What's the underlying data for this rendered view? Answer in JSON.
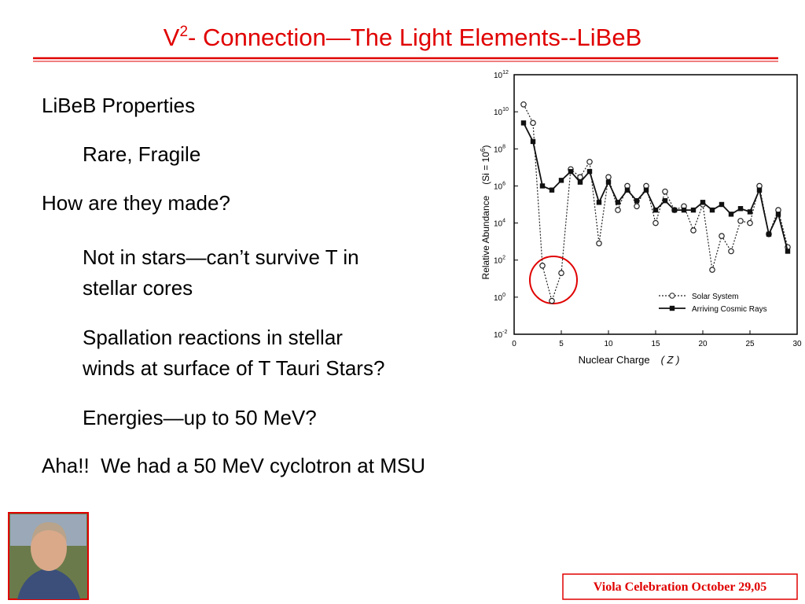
{
  "header": {
    "title": {
      "pre": "V",
      "sup": "2",
      "post": "- Connection—The Light Elements--LiBeB"
    }
  },
  "body": {
    "items": [
      {
        "level": 1,
        "text": "LiBeB Properties"
      },
      {
        "level": 2,
        "text": "Rare, Fragile"
      },
      {
        "level": 1,
        "text": "How are they made?"
      },
      {
        "level": 2,
        "text": "Not in stars—can’t survive T in"
      },
      {
        "level": 2,
        "text": "stellar cores"
      },
      {
        "level": 2,
        "text": "Spallation reactions in stellar"
      },
      {
        "level": 2,
        "text": "winds at surface of T Tauri Stars?"
      },
      {
        "level": 2,
        "text": "Energies—up to 50 MeV?"
      },
      {
        "level": 1,
        "text": "Aha!!  We had a 50 MeV cyclotron at MSU"
      }
    ]
  },
  "chart_data": {
    "type": "line",
    "xlabel": "Nuclear Charge",
    "xlabel_symbol": "( Z )",
    "ylabel": "Relative Abundance",
    "ylabel_unit": {
      "pre": "(Si = 10",
      "sup": "6",
      "post": ")"
    },
    "log_y": true,
    "xlim": [
      0,
      30
    ],
    "xticks": [
      0,
      5,
      10,
      15,
      20,
      25,
      30
    ],
    "ylim": [
      0.01,
      1000000000000.0
    ],
    "yticks": [
      {
        "value": 0.01,
        "label": "10",
        "sup": "-2"
      },
      {
        "value": 1,
        "label": "10",
        "sup": "0"
      },
      {
        "value": 100,
        "label": "10",
        "sup": "2"
      },
      {
        "value": 10000,
        "label": "10",
        "sup": "4"
      },
      {
        "value": 1000000,
        "label": "10",
        "sup": "6"
      },
      {
        "value": 100000000,
        "label": "10",
        "sup": "8"
      },
      {
        "value": 10000000000,
        "label": "10",
        "sup": "10"
      },
      {
        "value": 1000000000000,
        "label": "10",
        "sup": "12"
      }
    ],
    "x": [
      1,
      2,
      3,
      4,
      5,
      6,
      7,
      8,
      9,
      10,
      11,
      12,
      13,
      14,
      15,
      16,
      17,
      18,
      19,
      20,
      21,
      22,
      23,
      24,
      25,
      26,
      27,
      28,
      29
    ],
    "series": [
      {
        "name": "Solar System",
        "color": "#222222",
        "marker": "open-circle",
        "dash": true,
        "values": [
          25000000000.0,
          2500000000.0,
          50,
          0.63,
          20,
          8000000.0,
          3000000.0,
          20000000.0,
          800,
          3000000.0,
          50000.0,
          1000000.0,
          80000.0,
          1000000.0,
          10000.0,
          500000.0,
          50000.0,
          80000.0,
          4000.0,
          100000.0,
          30,
          2000.0,
          300,
          13000.0,
          10000.0,
          1000000.0,
          2500.0,
          50000.0,
          500
        ]
      },
      {
        "name": "Arriving Cosmic Rays",
        "color": "#111111",
        "marker": "filled-square",
        "dash": false,
        "values": [
          2500000000.0,
          250000000.0,
          1000000.0,
          600000.0,
          2000000.0,
          6000000.0,
          1600000.0,
          6000000.0,
          130000.0,
          1600000.0,
          130000.0,
          600000.0,
          160000.0,
          600000.0,
          50000.0,
          160000.0,
          50000.0,
          50000.0,
          50000.0,
          130000.0,
          50000.0,
          100000.0,
          30000.0,
          60000.0,
          40000.0,
          600000.0,
          2500.0,
          30000.0,
          300
        ]
      }
    ]
  },
  "footer": {
    "text": "Viola Celebration October 29,05"
  }
}
